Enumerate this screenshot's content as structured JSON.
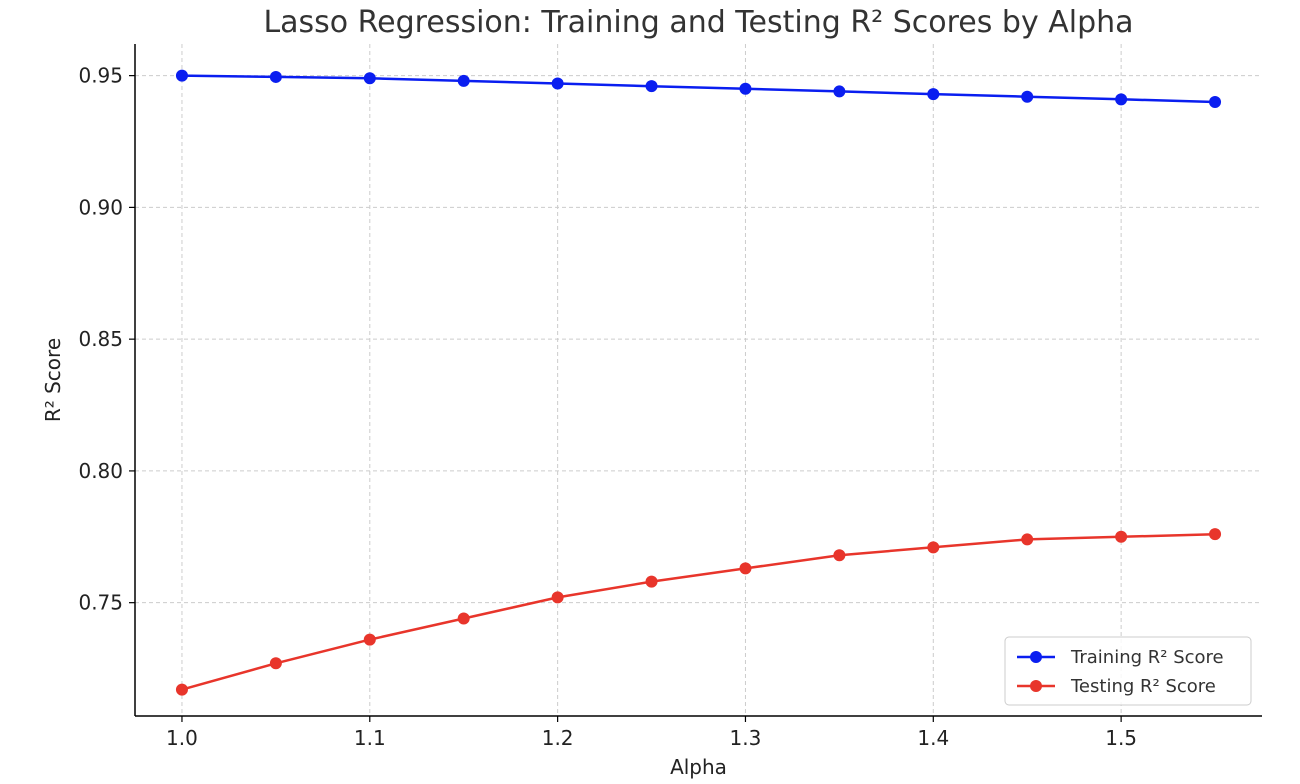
{
  "chart_data": {
    "type": "line",
    "title": "Lasso Regression: Training and Testing R² Scores by Alpha",
    "xlabel": "Alpha",
    "ylabel": "R² Score",
    "x": [
      1.0,
      1.05,
      1.1,
      1.15,
      1.2,
      1.25,
      1.3,
      1.35,
      1.4,
      1.45,
      1.5,
      1.55
    ],
    "xlim": [
      0.975,
      1.575
    ],
    "ylim": [
      0.707,
      0.962
    ],
    "x_ticks": [
      1.0,
      1.1,
      1.2,
      1.3,
      1.4,
      1.5
    ],
    "x_tick_labels": [
      "1.0",
      "1.1",
      "1.2",
      "1.3",
      "1.4",
      "1.5"
    ],
    "y_ticks": [
      0.75,
      0.8,
      0.85,
      0.9,
      0.95
    ],
    "y_tick_labels": [
      "0.75",
      "0.80",
      "0.85",
      "0.90",
      "0.95"
    ],
    "grid": true,
    "legend_position": "lower-right",
    "series": [
      {
        "name": "Training R² Score",
        "color": "#0a1ef0",
        "values": [
          0.95,
          0.9495,
          0.949,
          0.948,
          0.947,
          0.946,
          0.945,
          0.944,
          0.943,
          0.942,
          0.941,
          0.94
        ]
      },
      {
        "name": "Testing R² Score",
        "color": "#e8352b",
        "values": [
          0.717,
          0.727,
          0.736,
          0.744,
          0.752,
          0.758,
          0.763,
          0.768,
          0.771,
          0.774,
          0.775,
          0.776
        ]
      }
    ]
  }
}
